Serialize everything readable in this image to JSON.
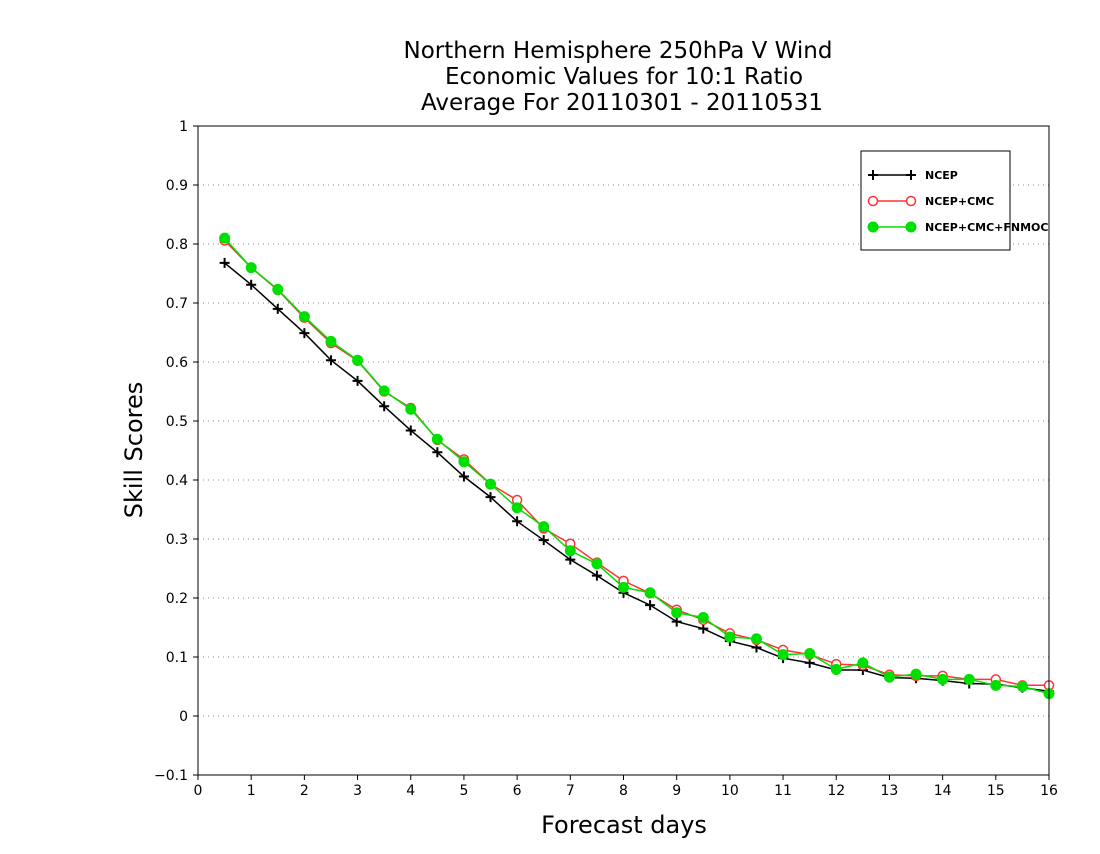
{
  "chart_data": {
    "type": "line",
    "title": [
      "Northern Hemisphere 250hPa V Wind",
      "Economic Values for 10:1 Ratio",
      "Average For 20110301 - 20110531"
    ],
    "xlabel": "Forecast days",
    "ylabel": "Skill Scores",
    "xlim": [
      0,
      16
    ],
    "ylim": [
      -0.1,
      1
    ],
    "xticks": [
      0,
      1,
      2,
      3,
      4,
      5,
      6,
      7,
      8,
      9,
      10,
      11,
      12,
      13,
      14,
      15,
      16
    ],
    "yticks": [
      -0.1,
      0,
      0.1,
      0.2,
      0.3,
      0.4,
      0.5,
      0.6,
      0.7,
      0.8,
      0.9,
      1
    ],
    "ytick_labels": [
      "−0.1",
      "0",
      "0.1",
      "0.2",
      "0.3",
      "0.4",
      "0.5",
      "0.6",
      "0.7",
      "0.8",
      "0.9",
      "1"
    ],
    "grid": "horizontal dotted",
    "legend_position": "top-right",
    "x": [
      0.5,
      1,
      1.5,
      2,
      2.5,
      3,
      3.5,
      4,
      4.5,
      5,
      5.5,
      6,
      6.5,
      7,
      7.5,
      8,
      8.5,
      9,
      9.5,
      10,
      10.5,
      11,
      11.5,
      12,
      12.5,
      13,
      13.5,
      14,
      14.5,
      15,
      15.5,
      16
    ],
    "series": [
      {
        "name": "NCEP",
        "color": "#000000",
        "marker": "plus",
        "values": [
          0.768,
          0.731,
          0.69,
          0.649,
          0.603,
          0.568,
          0.525,
          0.484,
          0.447,
          0.406,
          0.371,
          0.33,
          0.298,
          0.265,
          0.238,
          0.209,
          0.188,
          0.16,
          0.148,
          0.127,
          0.116,
          0.098,
          0.09,
          0.078,
          0.078,
          0.065,
          0.064,
          0.06,
          0.055,
          0.054,
          0.048,
          0.042
        ]
      },
      {
        "name": "NCEP+CMC",
        "color": "#ff3333",
        "marker": "open-circle",
        "values": [
          0.806,
          0.76,
          0.722,
          0.675,
          0.632,
          0.602,
          0.55,
          0.522,
          0.468,
          0.435,
          0.393,
          0.366,
          0.318,
          0.292,
          0.26,
          0.229,
          0.208,
          0.18,
          0.163,
          0.14,
          0.129,
          0.112,
          0.104,
          0.088,
          0.086,
          0.07,
          0.068,
          0.068,
          0.062,
          0.062,
          0.052,
          0.052
        ]
      },
      {
        "name": "NCEP+CMC+FNMOC",
        "color": "#00e000",
        "marker": "filled-circle",
        "values": [
          0.81,
          0.76,
          0.723,
          0.677,
          0.635,
          0.603,
          0.551,
          0.52,
          0.469,
          0.431,
          0.393,
          0.353,
          0.321,
          0.28,
          0.258,
          0.218,
          0.209,
          0.175,
          0.167,
          0.134,
          0.131,
          0.104,
          0.106,
          0.079,
          0.09,
          0.066,
          0.071,
          0.062,
          0.062,
          0.052,
          0.05,
          0.038
        ]
      }
    ]
  }
}
